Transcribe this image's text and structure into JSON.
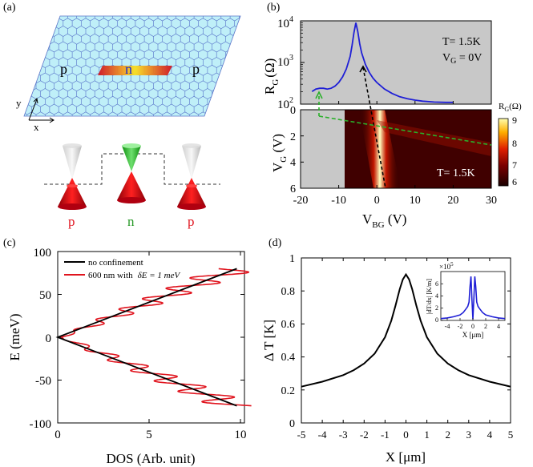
{
  "panel_labels": {
    "a": "(a)",
    "b": "(b)",
    "c": "(c)",
    "d": "(d)"
  },
  "panel_a": {
    "region_left": "p",
    "region_center": "n",
    "region_right": "p",
    "axis_y": "y",
    "axis_x": "x",
    "cone_labels": [
      "p",
      "n",
      "p"
    ]
  },
  "chart_data": [
    {
      "panel": "b-top",
      "type": "line",
      "ylabel_main": "R",
      "ylabel_sub": "G",
      "ylabel_unit": "(Ω)",
      "yscale": "log",
      "ylim": [
        100,
        10000
      ],
      "yticks": [
        {
          "base": "10",
          "exp": "2"
        },
        {
          "base": "10",
          "exp": "3"
        },
        {
          "base": "10",
          "exp": "4"
        }
      ],
      "annotation_T": "T= 1.5K",
      "annotation_VG_main": "V",
      "annotation_VG_sub": "G",
      "annotation_VG_rest": " = 0V",
      "x": [
        -17,
        -16,
        -15,
        -14,
        -13,
        -12,
        -11,
        -10,
        -9,
        -8,
        -7,
        -6.5,
        -6,
        -5.5,
        -5,
        -4.5,
        -4,
        -3,
        -2,
        -1,
        0,
        2,
        4,
        6,
        8,
        10,
        12,
        15,
        18,
        20
      ],
      "y": [
        200,
        230,
        240,
        240,
        230,
        240,
        270,
        330,
        450,
        700,
        1400,
        2600,
        5200,
        9000,
        5500,
        2800,
        1700,
        900,
        580,
        420,
        330,
        230,
        180,
        150,
        135,
        125,
        118,
        112,
        110,
        110
      ],
      "xlim": [
        -20,
        30
      ],
      "color": "#1f1fd6"
    },
    {
      "panel": "b-bottom",
      "type": "heatmap",
      "xlabel_main": "V",
      "xlabel_sub": "BG",
      "xlabel_unit": " (V)",
      "ylabel_main": "V",
      "ylabel_sub": "G",
      "ylabel_unit": " (V)",
      "xlim": [
        -20,
        30
      ],
      "ylim": [
        6,
        0
      ],
      "xticks": [
        "-20",
        "-10",
        "0",
        "10",
        "20",
        "30"
      ],
      "yticks": [
        "0",
        "2",
        "4",
        "6"
      ],
      "annotation_T": "T= 1.5K",
      "colorbar_title_main": "R",
      "colorbar_title_sub": "G",
      "colorbar_title_unit": "(Ω)",
      "colorbar_ticks": [
        "9",
        "8",
        "7",
        "6"
      ],
      "data_range_x": [
        -10,
        30
      ]
    },
    {
      "panel": "c",
      "type": "line",
      "xlabel": "DOS (Arb. unit)",
      "ylabel": "E (meV)",
      "xlim": [
        0,
        10
      ],
      "ylim": [
        -100,
        100
      ],
      "xticks": [
        "0",
        "5",
        "10"
      ],
      "yticks": [
        "100",
        "50",
        "0",
        "-50",
        "-100"
      ],
      "legend": [
        {
          "name": "no confinement",
          "color": "#000000"
        },
        {
          "name": "600 nm with",
          "extra": "δE = 1 meV",
          "color": "#e0141e"
        }
      ],
      "series": [
        {
          "name": "no confinement",
          "x": [
            9.8,
            0,
            9.8
          ],
          "y": [
            80,
            0,
            -80
          ]
        },
        {
          "name": "600 nm with δE = 1 meV",
          "description_values": "oscillating around linear DOS"
        }
      ]
    },
    {
      "panel": "d",
      "type": "line",
      "xlabel": "X [μm]",
      "ylabel": "Δ T [K]",
      "xlim": [
        -5,
        5
      ],
      "ylim": [
        0,
        1
      ],
      "xticks": [
        "-5",
        "-4",
        "-3",
        "-2",
        "-1",
        "0",
        "1",
        "2",
        "3",
        "4",
        "5"
      ],
      "yticks": [
        "1",
        "0.8",
        "0.6",
        "0.4",
        "0.2",
        "0"
      ],
      "x": [
        -5,
        -4,
        -3,
        -2.5,
        -2,
        -1.5,
        -1,
        -0.7,
        -0.5,
        -0.3,
        -0.15,
        0,
        0.15,
        0.3,
        0.5,
        0.7,
        1,
        1.5,
        2,
        2.5,
        3,
        4,
        5
      ],
      "y": [
        0.22,
        0.25,
        0.29,
        0.32,
        0.36,
        0.42,
        0.52,
        0.62,
        0.71,
        0.81,
        0.87,
        0.9,
        0.87,
        0.81,
        0.71,
        0.62,
        0.52,
        0.42,
        0.36,
        0.32,
        0.29,
        0.25,
        0.22
      ],
      "inset": {
        "xlabel": "X [μm]",
        "ylabel": "|dT/dx| [K/m]",
        "scale_label": "×10",
        "scale_exp": "5",
        "xticks": [
          "-4",
          "-2",
          "0",
          "2",
          "4"
        ],
        "yticks": [
          "0",
          "2",
          "4",
          "6"
        ],
        "xlim": [
          -5,
          5
        ],
        "ylim": [
          0,
          8
        ],
        "x": [
          -5,
          -4,
          -3,
          -2,
          -1.5,
          -1,
          -0.8,
          -0.6,
          -0.45,
          -0.3,
          -0.15,
          0,
          0.15,
          0.3,
          0.45,
          0.6,
          0.8,
          1,
          1.5,
          2,
          3,
          4,
          5
        ],
        "y": [
          0.3,
          0.4,
          0.6,
          0.9,
          1.3,
          2.0,
          2.3,
          3.0,
          5.5,
          7.2,
          3.5,
          0.2,
          3.5,
          7.2,
          5.5,
          3.0,
          2.3,
          2.0,
          1.3,
          0.9,
          0.6,
          0.4,
          0.3
        ],
        "color": "#1f1fd6"
      }
    }
  ]
}
